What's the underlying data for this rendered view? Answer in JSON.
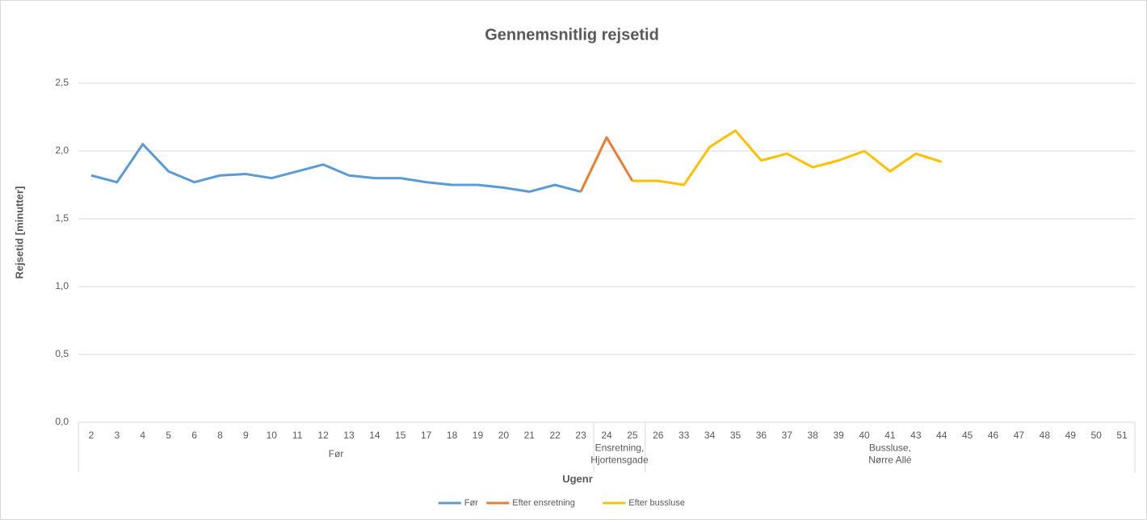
{
  "chart_data": {
    "type": "line",
    "title": "Gennemsnitlig rejsetid",
    "y_label": "Rejsetid [minutter]",
    "x_label": "Ugenr",
    "categories": [
      "2",
      "3",
      "4",
      "5",
      "6",
      "8",
      "9",
      "10",
      "11",
      "12",
      "13",
      "14",
      "15",
      "17",
      "18",
      "19",
      "20",
      "21",
      "22",
      "23",
      "24",
      "25",
      "26",
      "33",
      "34",
      "35",
      "36",
      "37",
      "38",
      "39",
      "40",
      "41",
      "43",
      "44",
      "45",
      "46",
      "47",
      "48",
      "49",
      "50",
      "51"
    ],
    "groups": [
      {
        "label": [
          "Før"
        ],
        "count": 20
      },
      {
        "label": [
          "Ensretning,",
          "Hjortensgade"
        ],
        "count": 2
      },
      {
        "label": [
          "Bussluse,",
          "Nørre Allé"
        ],
        "count": 19
      }
    ],
    "series": [
      {
        "name": "Før",
        "color": "#5b9bd5",
        "values": [
          1.82,
          1.77,
          2.05,
          1.85,
          1.77,
          1.82,
          1.83,
          1.8,
          1.85,
          1.9,
          1.82,
          1.8,
          1.8,
          1.77,
          1.75,
          1.75,
          1.73,
          1.7,
          1.75,
          1.7,
          null,
          null,
          null,
          null,
          null,
          null,
          null,
          null,
          null,
          null,
          null,
          null,
          null,
          null,
          null,
          null,
          null,
          null,
          null,
          null,
          null
        ]
      },
      {
        "name": "Efter ensretning",
        "color": "#ed7d31",
        "values": [
          null,
          null,
          null,
          null,
          null,
          null,
          null,
          null,
          null,
          null,
          null,
          null,
          null,
          null,
          null,
          null,
          null,
          null,
          null,
          1.7,
          2.1,
          1.78,
          null,
          null,
          null,
          null,
          null,
          null,
          null,
          null,
          null,
          null,
          null,
          null,
          null,
          null,
          null,
          null,
          null,
          null,
          null
        ]
      },
      {
        "name": "Efter bussluse",
        "color": "#ffc000",
        "values": [
          null,
          null,
          null,
          null,
          null,
          null,
          null,
          null,
          null,
          null,
          null,
          null,
          null,
          null,
          null,
          null,
          null,
          null,
          null,
          null,
          null,
          1.78,
          1.78,
          1.75,
          2.03,
          2.15,
          1.93,
          1.98,
          1.88,
          1.93,
          2.0,
          1.85,
          1.98,
          1.92,
          null,
          null,
          null,
          null,
          null,
          null,
          null
        ]
      }
    ],
    "ylim": [
      0,
      2.5
    ],
    "yticks": [
      {
        "value": 0,
        "label": "0,0"
      },
      {
        "value": 0.5,
        "label": "0,5"
      },
      {
        "value": 1,
        "label": "1,0"
      },
      {
        "value": 1.5,
        "label": "1,5"
      },
      {
        "value": 2,
        "label": "2,0"
      },
      {
        "value": 2.5,
        "label": "2,5"
      }
    ],
    "grid": true,
    "legend": "bottom"
  }
}
